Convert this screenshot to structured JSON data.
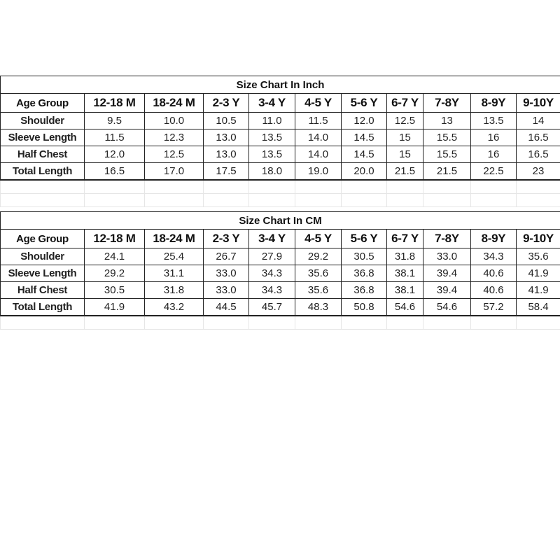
{
  "tables": [
    {
      "title": "Size Chart In Inch",
      "header": [
        "Age Group",
        "12-18 M",
        "18-24 M",
        "2-3 Y",
        "3-4 Y",
        "4-5 Y",
        "5-6 Y",
        "6-7 Y",
        "7-8Y",
        "8-9Y",
        "9-10Y"
      ],
      "rows": [
        [
          "Shoulder",
          "9.5",
          "10.0",
          "10.5",
          "11.0",
          "11.5",
          "12.0",
          "12.5",
          "13",
          "13.5",
          "14"
        ],
        [
          "Sleeve Length",
          "11.5",
          "12.3",
          "13.0",
          "13.5",
          "14.0",
          "14.5",
          "15",
          "15.5",
          "16",
          "16.5"
        ],
        [
          "Half Chest",
          "12.0",
          "12.5",
          "13.0",
          "13.5",
          "14.0",
          "14.5",
          "15",
          "15.5",
          "16",
          "16.5"
        ],
        [
          "Total Length",
          "16.5",
          "17.0",
          "17.5",
          "18.0",
          "19.0",
          "20.0",
          "21.5",
          "21.5",
          "22.5",
          "23"
        ]
      ],
      "blank_rows": 2
    },
    {
      "title": "Size Chart In CM",
      "header": [
        "Age Group",
        "12-18 M",
        "18-24 M",
        "2-3 Y",
        "3-4 Y",
        "4-5 Y",
        "5-6 Y",
        "6-7 Y",
        "7-8Y",
        "8-9Y",
        "9-10Y"
      ],
      "rows": [
        [
          "Shoulder",
          "24.1",
          "25.4",
          "26.7",
          "27.9",
          "29.2",
          "30.5",
          "31.8",
          "33.0",
          "34.3",
          "35.6"
        ],
        [
          "Sleeve Length",
          "29.2",
          "31.1",
          "33.0",
          "34.3",
          "35.6",
          "36.8",
          "38.1",
          "39.4",
          "40.6",
          "41.9"
        ],
        [
          "Half Chest",
          "30.5",
          "31.8",
          "33.0",
          "34.3",
          "35.6",
          "36.8",
          "38.1",
          "39.4",
          "40.6",
          "41.9"
        ],
        [
          "Total Length",
          "41.9",
          "43.2",
          "44.5",
          "45.7",
          "48.3",
          "50.8",
          "54.6",
          "54.6",
          "57.2",
          "58.4"
        ]
      ],
      "blank_rows": 1
    }
  ]
}
